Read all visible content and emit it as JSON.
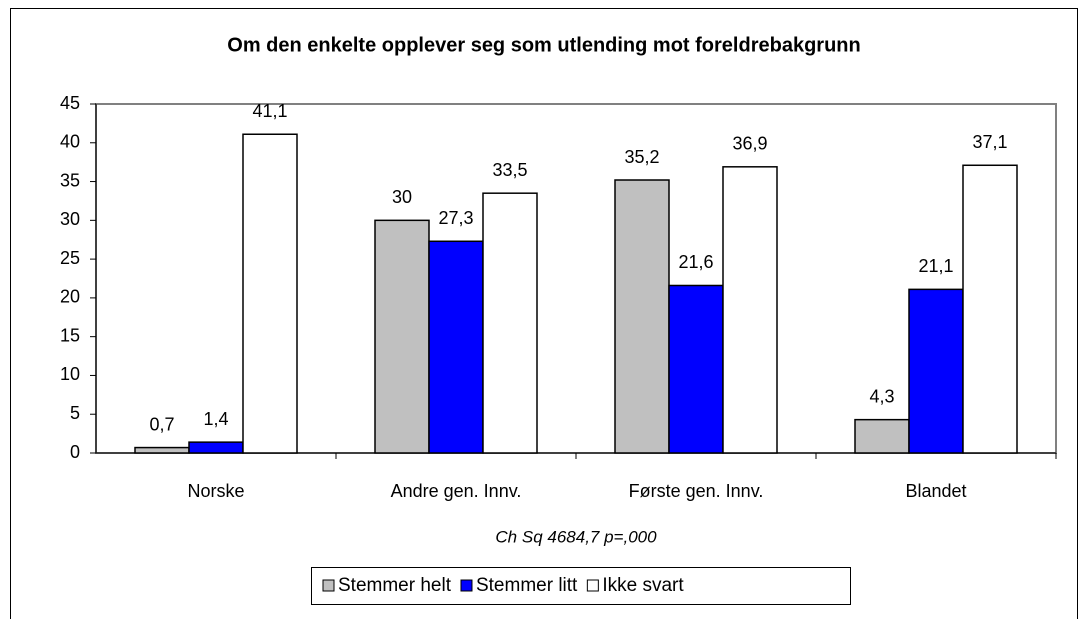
{
  "chart_data": {
    "type": "bar",
    "title": "Om den enkelte opplever seg som utlending mot foreldrebakgrunn",
    "x_label": "Ch Sq 4684,7  p=,000",
    "categories": [
      "Norske",
      "Andre gen. Innv.",
      "Første gen. Innv.",
      "Blandet"
    ],
    "series": [
      {
        "name": "Stemmer helt",
        "color": "#c0c0c0",
        "values": [
          0.7,
          30,
          35.2,
          4.3
        ],
        "value_labels": [
          "0,7",
          "30",
          "35,2",
          "4,3"
        ]
      },
      {
        "name": "Stemmer litt",
        "color": "#0000ff",
        "values": [
          1.4,
          27.3,
          21.6,
          21.1
        ],
        "value_labels": [
          "1,4",
          "27,3",
          "21,6",
          "21,1"
        ]
      },
      {
        "name": "Ikke svart",
        "color": "#ffffff",
        "values": [
          41.1,
          33.5,
          36.9,
          37.1
        ],
        "value_labels": [
          "41,1",
          "33,5",
          "36,9",
          "37,1"
        ]
      }
    ],
    "ylim": [
      0,
      45
    ],
    "yticks": [
      0,
      5,
      10,
      15,
      20,
      25,
      30,
      35,
      40,
      45
    ],
    "legend": "bottom"
  }
}
